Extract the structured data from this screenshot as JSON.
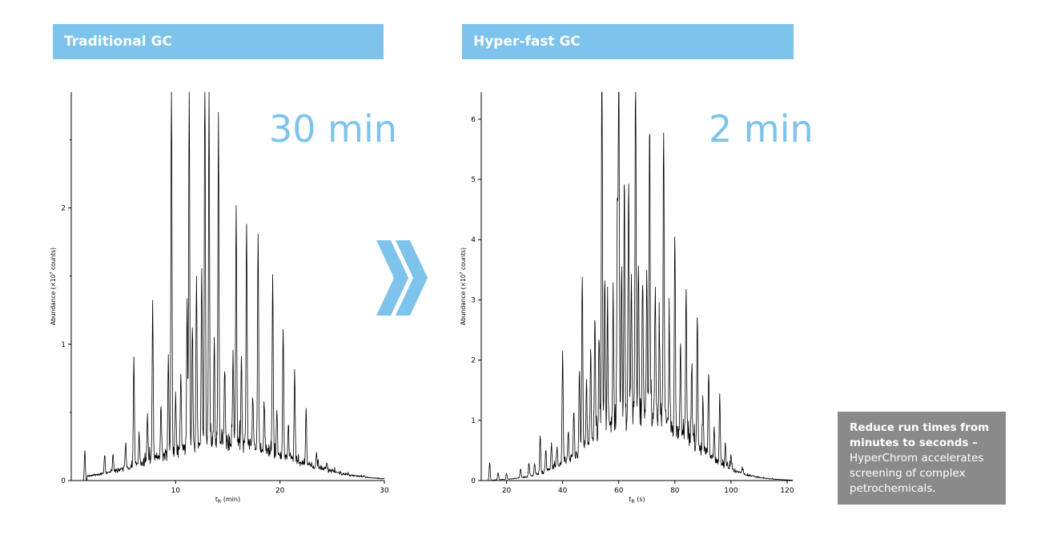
{
  "panels": {
    "left": {
      "header": "Traditional GC",
      "time_label": "30 min"
    },
    "right": {
      "header": "Hyper-fast GC",
      "time_label": "2 min"
    }
  },
  "callout": {
    "bold_text": "Reduce run times from minutes to seconds –",
    "text": "HyperChrom accelerates screening of complex petrochemicals."
  },
  "colors": {
    "header_bg": "#7dc3ec",
    "time_label": "#7dc3ec",
    "arrow": "#7dc3ec",
    "callout_bg": "#8a8a8a",
    "trace": "#000000"
  },
  "icons": {
    "arrow": "double-chevron-right-icon"
  },
  "chart_data": [
    {
      "type": "line",
      "xlabel_main": "t",
      "xlabel_sub": "R",
      "xlabel_unit": " (min)",
      "ylabel_pre": "Abundance (×10",
      "ylabel_sup": "7",
      "ylabel_post": " counts)",
      "xlim": [
        0,
        30
      ],
      "ylim": [
        0,
        2.85
      ],
      "xticks": [
        10,
        20,
        30
      ],
      "yticks": [
        0,
        1,
        2
      ],
      "yminor": [
        0.5,
        1.5,
        2.5
      ],
      "baseline": {
        "center": 14.5,
        "width": 6.2,
        "height": 0.25,
        "start": 1.5
      },
      "peaks": [
        [
          1.3,
          0.22
        ],
        [
          3.2,
          0.13
        ],
        [
          4.0,
          0.12
        ],
        [
          5.2,
          0.18
        ],
        [
          6.0,
          0.8
        ],
        [
          6.5,
          0.22
        ],
        [
          7.3,
          0.33
        ],
        [
          7.8,
          1.15
        ],
        [
          8.6,
          0.38
        ],
        [
          9.3,
          0.7
        ],
        [
          9.6,
          2.82
        ],
        [
          10.0,
          0.45
        ],
        [
          10.5,
          0.55
        ],
        [
          11.1,
          1.1
        ],
        [
          11.3,
          2.62
        ],
        [
          11.6,
          0.85
        ],
        [
          12.0,
          1.2
        ],
        [
          12.5,
          1.28
        ],
        [
          12.8,
          2.85
        ],
        [
          13.2,
          2.55
        ],
        [
          13.7,
          0.75
        ],
        [
          14.1,
          2.35
        ],
        [
          14.7,
          0.55
        ],
        [
          15.5,
          0.65
        ],
        [
          15.8,
          1.75
        ],
        [
          16.3,
          0.55
        ],
        [
          16.8,
          1.6
        ],
        [
          17.4,
          0.4
        ],
        [
          17.9,
          1.6
        ],
        [
          18.5,
          0.35
        ],
        [
          19.3,
          1.3
        ],
        [
          19.7,
          0.3
        ],
        [
          20.3,
          0.95
        ],
        [
          20.8,
          0.25
        ],
        [
          21.4,
          0.65
        ],
        [
          22.5,
          0.4
        ],
        [
          23.5,
          0.1
        ],
        [
          24.5,
          0.05
        ]
      ]
    },
    {
      "type": "line",
      "xlabel_main": "t",
      "xlabel_sub": "R",
      "xlabel_unit": " (s)",
      "ylabel_pre": "Abundance (×10",
      "ylabel_sup": "7",
      "ylabel_post": " counts)",
      "xlim": [
        11,
        122
      ],
      "ylim": [
        0,
        6.45
      ],
      "xticks": [
        20,
        40,
        60,
        80,
        100,
        120
      ],
      "yticks": [
        0,
        1,
        2,
        3,
        4,
        5,
        6
      ],
      "yminor": [],
      "baseline": {
        "center": 68,
        "width": 17,
        "height": 1.0,
        "start": 15
      },
      "peaks": [
        [
          14,
          0.3
        ],
        [
          17,
          0.12
        ],
        [
          20,
          0.1
        ],
        [
          25,
          0.15
        ],
        [
          28,
          0.2
        ],
        [
          30,
          0.18
        ],
        [
          32,
          0.65
        ],
        [
          34,
          0.35
        ],
        [
          36,
          0.4
        ],
        [
          38,
          0.35
        ],
        [
          40,
          1.85
        ],
        [
          42,
          0.5
        ],
        [
          44,
          0.75
        ],
        [
          46,
          1.3
        ],
        [
          47,
          2.95
        ],
        [
          48.5,
          1.0
        ],
        [
          50,
          1.5
        ],
        [
          51.5,
          2.1
        ],
        [
          53,
          1.6
        ],
        [
          54,
          6.45
        ],
        [
          55,
          2.6
        ],
        [
          56,
          1.9
        ],
        [
          58,
          2.2
        ],
        [
          59.5,
          3.6
        ],
        [
          60,
          5.9
        ],
        [
          61,
          2.5
        ],
        [
          62,
          3.9
        ],
        [
          63.5,
          3.9
        ],
        [
          64.5,
          2.2
        ],
        [
          66,
          5.95
        ],
        [
          67,
          2.4
        ],
        [
          68.5,
          2.3
        ],
        [
          70,
          2.4
        ],
        [
          71,
          4.85
        ],
        [
          73,
          2.2
        ],
        [
          74.5,
          1.5
        ],
        [
          76,
          4.7
        ],
        [
          78,
          1.5
        ],
        [
          80,
          3.2
        ],
        [
          82,
          1.4
        ],
        [
          84,
          2.6
        ],
        [
          86,
          1.2
        ],
        [
          88,
          2.15
        ],
        [
          90,
          0.9
        ],
        [
          92,
          1.4
        ],
        [
          94,
          0.5
        ],
        [
          96,
          1.1
        ],
        [
          98,
          0.35
        ],
        [
          100,
          0.25
        ],
        [
          104,
          0.1
        ]
      ]
    }
  ]
}
